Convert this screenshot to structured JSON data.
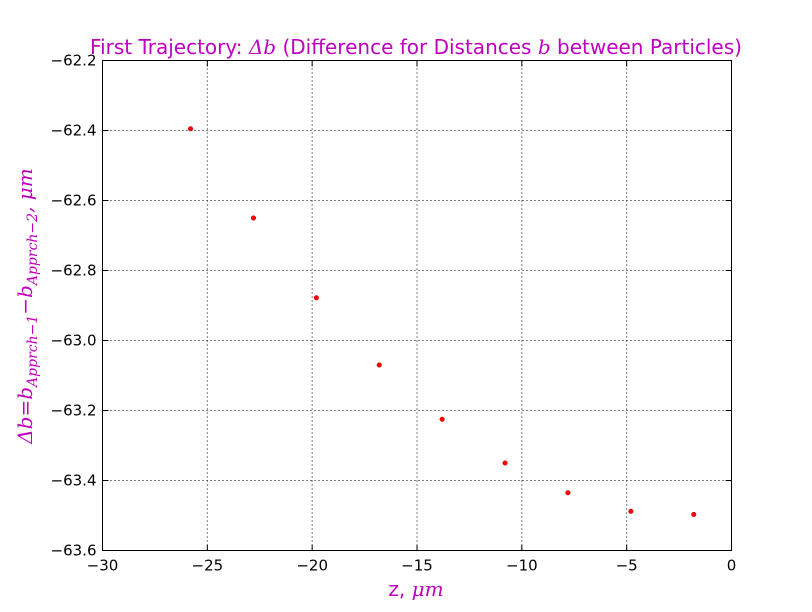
{
  "colors": {
    "accent": "#bf00bf",
    "marker": "#ff0000"
  },
  "chart_data": {
    "type": "scatter",
    "title": {
      "prefix": "First Trajectory: ",
      "math": "Δb",
      "middle": " (Difference for Distances ",
      "math2": "b",
      "suffix": " between Particles)"
    },
    "xlabel": {
      "text": "z, ",
      "math": "μm"
    },
    "ylabel": {
      "a": "Δb",
      "b": "=b",
      "sub1": "Apprch−1",
      "c": "−b",
      "sub2": "Apprch−2",
      "d": ", μm"
    },
    "xlim": [
      -30,
      0
    ],
    "ylim": [
      -63.6,
      -62.2
    ],
    "xticks": [
      -30,
      -25,
      -20,
      -15,
      -10,
      -5,
      0
    ],
    "xtick_labels": [
      "−30",
      "−25",
      "−20",
      "−15",
      "−10",
      "−5",
      "0"
    ],
    "yticks": [
      -62.2,
      -62.4,
      -62.6,
      -62.8,
      -63.0,
      -63.2,
      -63.4,
      -63.6
    ],
    "ytick_labels": [
      "−62.2",
      "−62.4",
      "−62.6",
      "−62.8",
      "−63.0",
      "−63.2",
      "−63.4",
      "−63.6"
    ],
    "grid": true,
    "x": [
      -25.8,
      -22.8,
      -19.8,
      -16.8,
      -13.8,
      -10.8,
      -7.8,
      -4.8,
      -1.8
    ],
    "y": [
      -62.395,
      -62.65,
      -62.878,
      -63.07,
      -63.225,
      -63.35,
      -63.435,
      -63.488,
      -63.497
    ]
  }
}
